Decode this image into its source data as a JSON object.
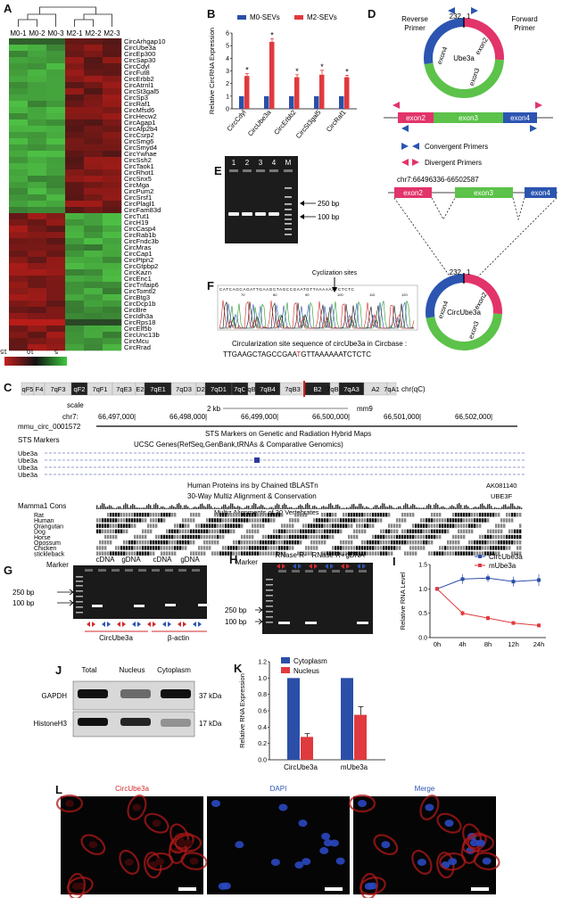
{
  "panels": {
    "A": {
      "label": "A",
      "columns": [
        "M0-1",
        "M0-2",
        "M0-3",
        "M2-1",
        "M2-2",
        "M2-3"
      ],
      "rows": [
        "CircArhgap10",
        "CircUbe3a",
        "CircEp300",
        "CircSap30",
        "CircCdyl",
        "CircFut8",
        "CircErbb2",
        "CircAtrnl1",
        "CircSt3gal5",
        "CircSp3",
        "CircRaf1",
        "CircMfsd6",
        "CircHecw2",
        "CircAgap1",
        "CircAfp2b4",
        "CircCsrp2",
        "CircSmg6",
        "CircSmyd4",
        "CircYwhae",
        "CircSsh2",
        "CircTaok1",
        "CircRhot1",
        "CircSnx5",
        "CircMga",
        "CircPum2",
        "CircSrsf1",
        "CircPlagl1",
        "CircFam83d",
        "CircTut1",
        "CircH19",
        "CircCasp4",
        "CircRab1b",
        "CircFndc3b",
        "CircMras",
        "CircCap1",
        "CircPtpn2",
        "CircGtpbp2",
        "CircKazn",
        "CircEnc1",
        "CircTnfaip6",
        "CircTomtl2",
        "CircBtg3",
        "CircDcp1b",
        "CircBre",
        "CircIdh3a",
        "CircRps18",
        "CircElf5b",
        "CircUnc13b",
        "CircMcu",
        "CircRrad"
      ],
      "legend_ticks": [
        "15",
        "10",
        "5"
      ]
    },
    "B": {
      "label": "B",
      "ylabel": "Relative CircRNA Expression",
      "legend": [
        "M0-SEVs",
        "M2-SEVs"
      ],
      "star": "*"
    },
    "D": {
      "label": "D",
      "reverse_primer": "Reverse Primer",
      "forward_primer": "Forward Primer",
      "junction_a": "232",
      "junction_b": "1",
      "gene": "Ube3a",
      "circ_gene": "CircUbe3a",
      "exon2": "exon2",
      "exon3": "exon3",
      "exon4": "exon4",
      "convergent": "Convergent Primers",
      "divergent": "Divergent Primers",
      "chr": "chr7:66496336-66502587"
    },
    "E": {
      "label": "E",
      "lanes": [
        "1",
        "2",
        "3",
        "4",
        "M"
      ],
      "bp250": "250 bp",
      "bp100": "100 bp"
    },
    "F": {
      "label": "F",
      "cyclization": "Cyclization sites",
      "caption": "Circularization site sequence of circUbe3a in Circbase :",
      "seq_a": "TTGAAGCTAGCCGAA",
      "seq_t": "T",
      "seq_b": "GTTAAAAAATCTCTC",
      "read_top": "CATCAGCAGATTGAAGCTAGCCGAATGTTAAAAAATCTCTC",
      "ticks": [
        "70",
        "80",
        "90",
        "100",
        "110",
        "120"
      ]
    },
    "C": {
      "label": "C",
      "bands": [
        "qF5",
        "F4",
        "7qF3",
        "qF2",
        "7qF1",
        "7qE3",
        "E2",
        "7qE1",
        "7qD3",
        "D2",
        "7qD1",
        "7qC",
        "7qB5",
        "7qB4",
        "7qB3",
        "B2",
        "7qB1",
        "7qA3",
        "A2",
        "7qA1"
      ],
      "chr": "chr(qC)",
      "scale": "scale",
      "kb": "2 kb",
      "assembly": "mm9",
      "chr7": "chr7:",
      "positions": [
        "66,497,000|",
        "66,498,000|",
        "66,499,000|",
        "66,500,000|",
        "66,501,000|",
        "66,502,000|"
      ],
      "circ_id": "mmu_circ_0001572",
      "sts": "STS Markers",
      "sts_title": "STS Markers on Genetic and Radiation Hybrid Maps",
      "ucsc": "UCSC Genes(RefSeq,GenBank,tRNAs & Comparative Genomics)",
      "genes": [
        "Ube3a",
        "Ube3a",
        "Ube3a",
        "Ube3a"
      ],
      "human_prot": "Human Proteins ins by Chained tBLASTn",
      "ak": "AK081140",
      "ube3f": "UBE3F",
      "multiz": "30-Way Multiz Alignment & Conservation",
      "mamma": "Mamma1 Cons",
      "multiz2": "Multiz Alignments of 30 Vertebrates",
      "species": [
        "Rat",
        "Human",
        "Orangutan",
        "Dog",
        "Horse",
        "Opossum",
        "Chicken",
        "stickleback"
      ]
    },
    "G": {
      "label": "G",
      "marker": "Marker",
      "headers": [
        "cDNA",
        "gDNA",
        "cDNA",
        "gDNA"
      ],
      "bp250": "250 bp",
      "bp100": "100 bp",
      "groups": [
        "CircUbe3a",
        "β-actin"
      ]
    },
    "H": {
      "label": "H",
      "marker": "Marker",
      "headers": [
        "RNase R-",
        "RNase R+",
        "gDNA"
      ],
      "bp250": "250 bp",
      "bp100": "100 bp"
    },
    "I": {
      "label": "I",
      "ylabel": "Relative RNA Level",
      "legend": [
        "CircUbe3a",
        "mUbe3a"
      ]
    },
    "J": {
      "label": "J",
      "headers": [
        "Total",
        "Nucleus",
        "Cytoplasm"
      ],
      "rows": [
        "GAPDH",
        "HistoneH3"
      ],
      "kda": [
        "37 kDa",
        "17 kDa"
      ]
    },
    "K": {
      "label": "K",
      "ylabel": "Relative RNA Expression",
      "legend": [
        "Cytoplasm",
        "Nucleus"
      ]
    },
    "L": {
      "label": "L",
      "titles": [
        "CircUbe3a",
        "DAPI",
        "Merge"
      ]
    }
  },
  "chart_data": [
    {
      "panel": "B",
      "type": "bar",
      "categories": [
        "CircCdyl",
        "CircUbe3a",
        "CircErbb2",
        "CircSt3gal5",
        "CircRaf1"
      ],
      "series": [
        {
          "name": "M0-SEVs",
          "values": [
            1,
            1,
            1,
            1,
            1
          ],
          "color": "#2b4fa8"
        },
        {
          "name": "M2-SEVs",
          "values": [
            2.6,
            5.3,
            2.5,
            2.7,
            2.5
          ],
          "errors": [
            0.2,
            0.25,
            0.2,
            0.35,
            0.15
          ],
          "color": "#e03a3e"
        }
      ],
      "ylabel": "Relative CircRNA Expression",
      "ylim": [
        0,
        6
      ],
      "yticks": [
        0,
        1,
        2,
        3,
        4,
        5,
        6
      ],
      "significance": [
        true,
        true,
        true,
        true,
        true
      ]
    },
    {
      "panel": "I",
      "type": "line",
      "x": [
        "0h",
        "4h",
        "8h",
        "12h",
        "24h"
      ],
      "series": [
        {
          "name": "CircUbe3a",
          "values": [
            1.0,
            1.2,
            1.22,
            1.15,
            1.18
          ],
          "errors": [
            0.02,
            0.1,
            0.08,
            0.1,
            0.12
          ],
          "color": "#2b4fa8"
        },
        {
          "name": "mUbe3a",
          "values": [
            1.0,
            0.5,
            0.4,
            0.3,
            0.25
          ],
          "errors": [
            0.02,
            0.05,
            0.05,
            0.04,
            0.04
          ],
          "color": "#e03a3e"
        }
      ],
      "ylabel": "Relative RNA Level",
      "ylim": [
        0,
        1.5
      ],
      "yticks": [
        0,
        0.5,
        1.0,
        1.5
      ]
    },
    {
      "panel": "K",
      "type": "bar",
      "categories": [
        "CircUbe3a",
        "mUbe3a"
      ],
      "series": [
        {
          "name": "Cytoplasm",
          "values": [
            1.0,
            1.0
          ],
          "errors": [
            0,
            0
          ],
          "color": "#2b4fa8"
        },
        {
          "name": "Nucleus",
          "values": [
            0.28,
            0.55
          ],
          "errors": [
            0.04,
            0.1
          ],
          "color": "#e03a3e"
        }
      ],
      "ylabel": "Relative RNA Expression",
      "ylim": [
        0,
        1.2
      ],
      "yticks": [
        0,
        0.2,
        0.4,
        0.6,
        0.8,
        1.0,
        1.2
      ]
    }
  ]
}
